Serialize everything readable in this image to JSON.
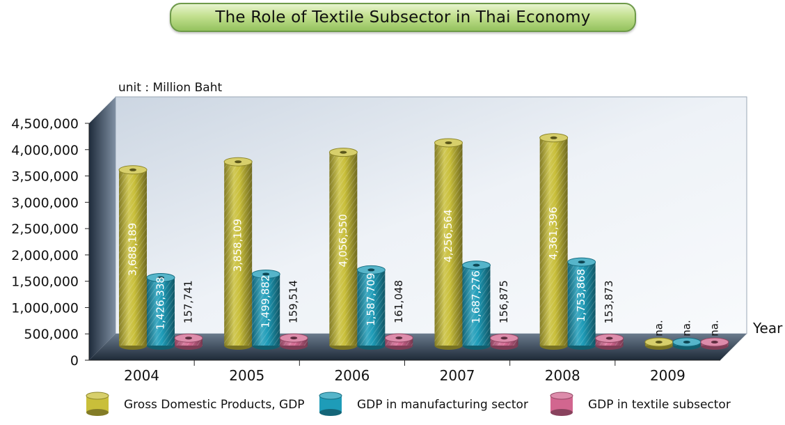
{
  "title": "The Role of Textile Subsector in Thai Economy",
  "colors": {
    "gdp": "#c9bf3a",
    "manufacturing": "#1e9cb8",
    "textile": "#d2668f"
  },
  "chart_data": {
    "type": "bar",
    "title": "The Role of Textile Subsector in Thai Economy",
    "unit_label": "unit : Million Baht",
    "xlabel": "Year",
    "ylabel": "",
    "ylim": [
      0,
      4500000
    ],
    "yticks": [
      "0",
      "500,000",
      "1,000,000",
      "1,500,000",
      "2,000,000",
      "2,500,000",
      "3,000,000",
      "3,500,000",
      "4,000,000",
      "4,500,000"
    ],
    "categories": [
      "2004",
      "2005",
      "2006",
      "2007",
      "2008",
      "2009"
    ],
    "series": [
      {
        "name": "Gross Domestic Products, GDP",
        "values": [
          3688189,
          3858109,
          4056550,
          4256564,
          4361396,
          null
        ],
        "labels": [
          "3,688,189",
          "3,858,109",
          "4,056,550",
          "4,256,564",
          "4,361,396",
          "na."
        ]
      },
      {
        "name": "GDP in manufacturing sector",
        "values": [
          1426338,
          1499882,
          1587709,
          1687276,
          1753868,
          null
        ],
        "labels": [
          "1,426,338",
          "1,499,882",
          "1,587,709",
          "1,687,276",
          "1,753,868",
          "na."
        ]
      },
      {
        "name": "GDP in textile subsector",
        "values": [
          157741,
          159514,
          161048,
          156875,
          153873,
          null
        ],
        "labels": [
          "157,741",
          "159,514",
          "161,048",
          "156,875",
          "153,873",
          "na."
        ]
      }
    ],
    "grid": false,
    "legend": "bottom"
  }
}
